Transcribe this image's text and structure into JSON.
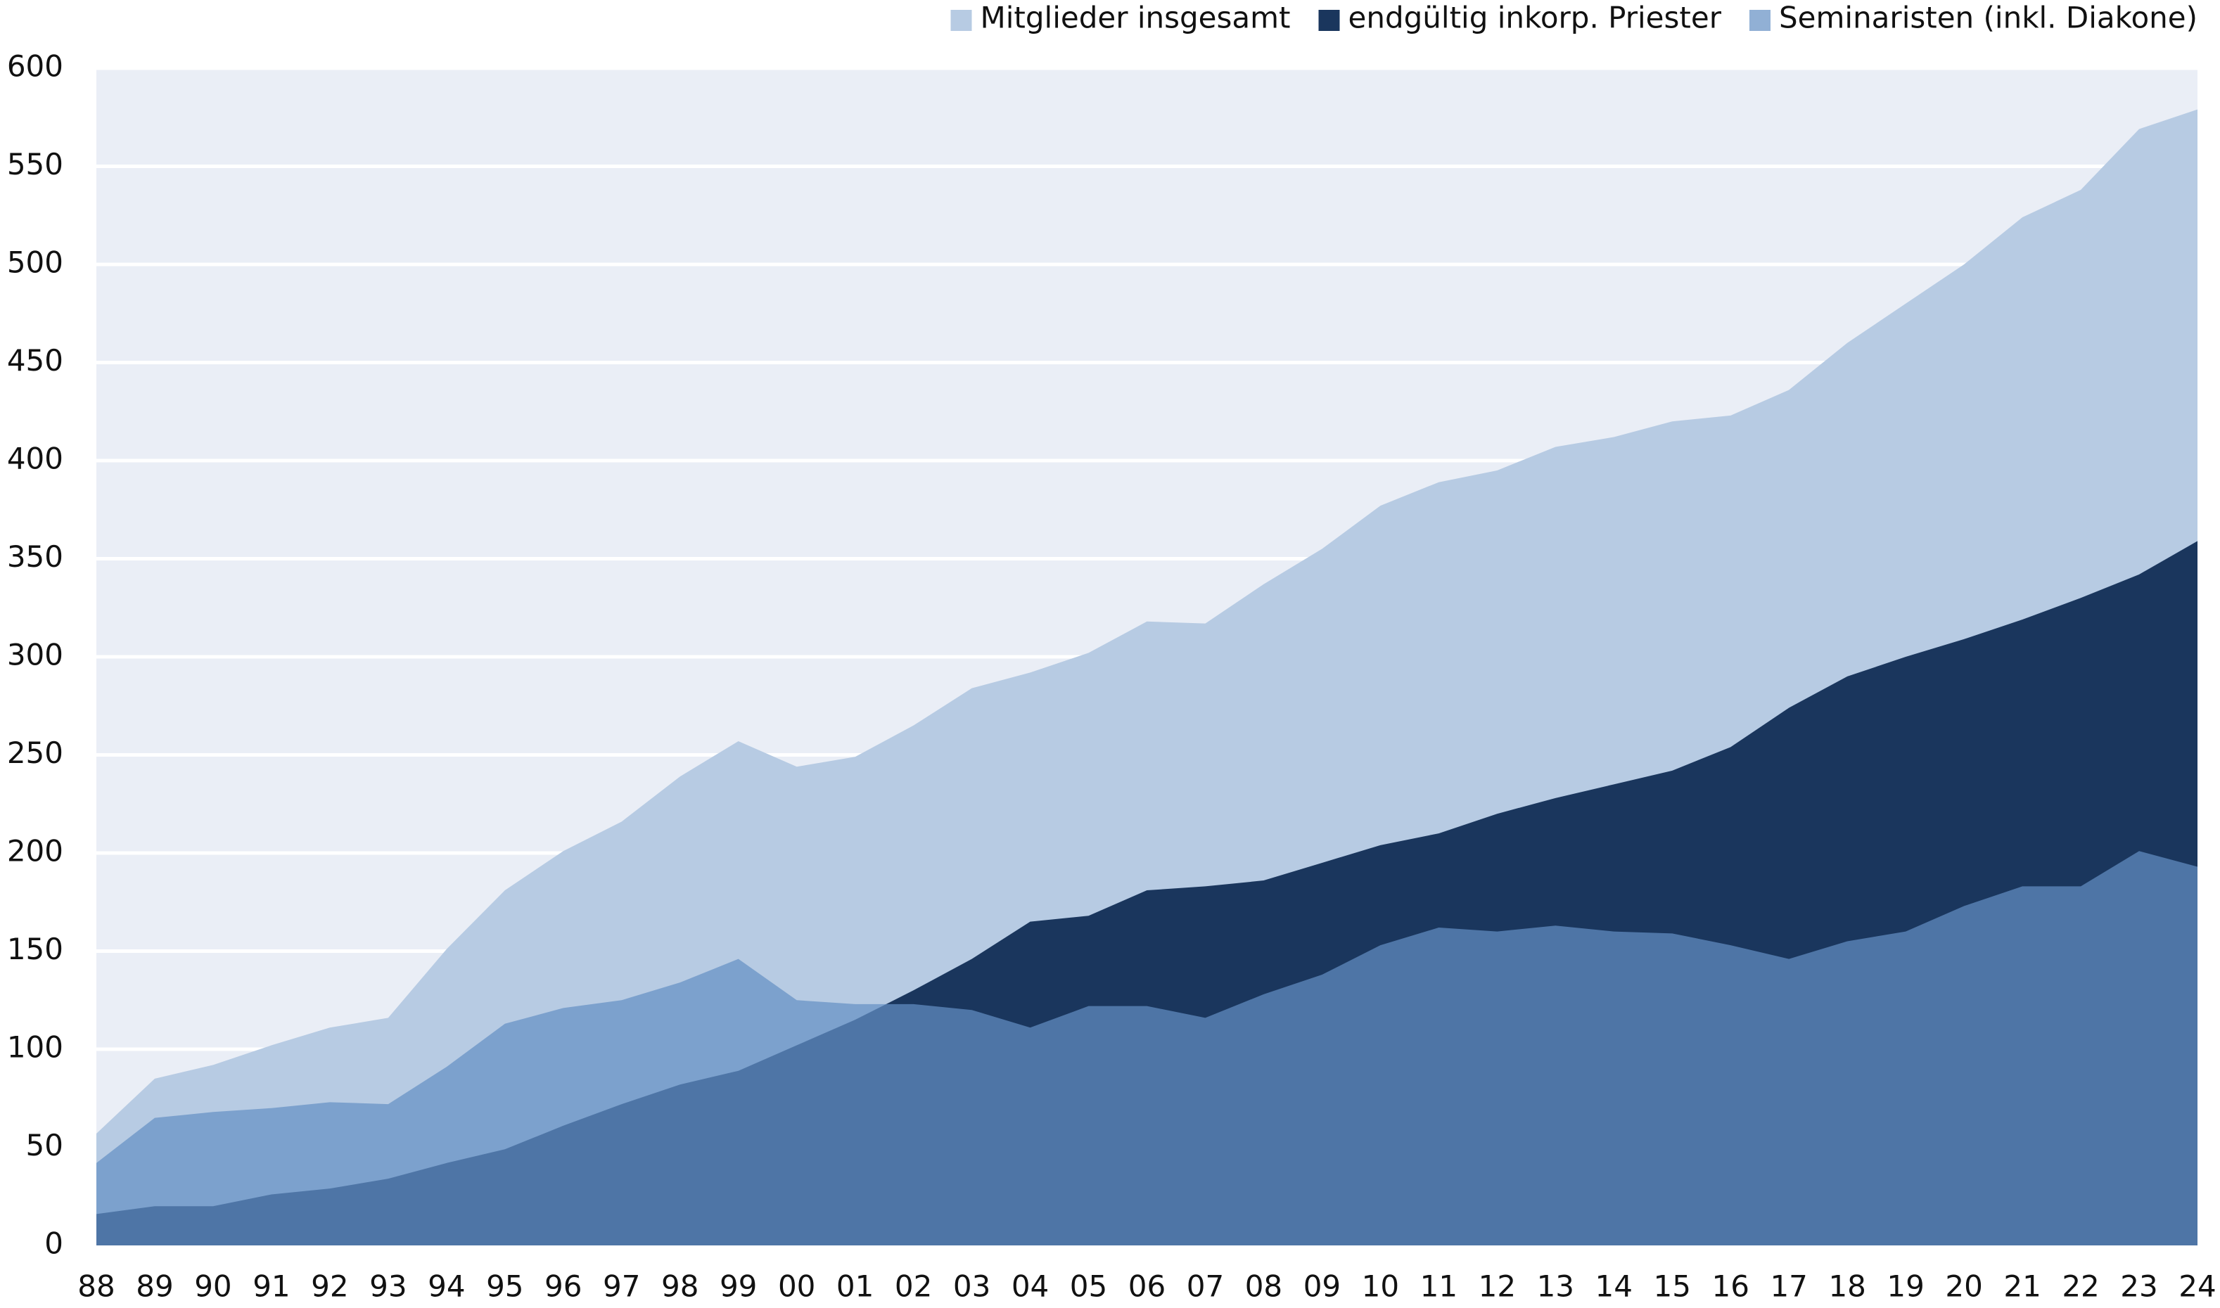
{
  "chart_data": {
    "type": "area",
    "categories": [
      "88",
      "89",
      "90",
      "91",
      "92",
      "93",
      "94",
      "95",
      "96",
      "97",
      "98",
      "99",
      "00",
      "01",
      "02",
      "03",
      "04",
      "05",
      "06",
      "07",
      "08",
      "09",
      "10",
      "11",
      "12",
      "13",
      "14",
      "15",
      "16",
      "17",
      "18",
      "19",
      "20",
      "21",
      "22",
      "23",
      "24"
    ],
    "series": [
      {
        "name": "Mitglieder insgesamt",
        "color": "#b7cbe3",
        "opacity": 1,
        "values": [
          57,
          85,
          92,
          102,
          111,
          116,
          151,
          181,
          201,
          216,
          239,
          257,
          244,
          249,
          265,
          284,
          292,
          302,
          318,
          317,
          337,
          355,
          377,
          389,
          395,
          407,
          412,
          420,
          423,
          436,
          460,
          480,
          500,
          524,
          538,
          569,
          579
        ]
      },
      {
        "name": "endgültig inkorp. Priester",
        "color": "#1a365d",
        "opacity": 1,
        "values": [
          16,
          20,
          20,
          26,
          29,
          34,
          42,
          49,
          61,
          72,
          82,
          89,
          102,
          115,
          130,
          146,
          165,
          168,
          181,
          183,
          186,
          195,
          204,
          210,
          220,
          228,
          235,
          242,
          254,
          274,
          290,
          300,
          309,
          319,
          330,
          342,
          359
        ]
      },
      {
        "name": "Seminaristen (inkl. Diakone)",
        "color": "#6490c4",
        "opacity": 0.71,
        "values": [
          42,
          65,
          68,
          70,
          73,
          72,
          91,
          113,
          121,
          125,
          134,
          146,
          125,
          123,
          123,
          120,
          111,
          122,
          122,
          116,
          128,
          138,
          153,
          162,
          160,
          163,
          160,
          159,
          153,
          146,
          155,
          160,
          173,
          183,
          183,
          201,
          193
        ]
      }
    ],
    "ylim": [
      0,
      600
    ],
    "yticks": [
      0,
      50,
      100,
      150,
      200,
      250,
      300,
      350,
      400,
      450,
      500,
      550,
      600
    ],
    "grid": true,
    "legend": "top-right",
    "background": "#eaeef6"
  }
}
